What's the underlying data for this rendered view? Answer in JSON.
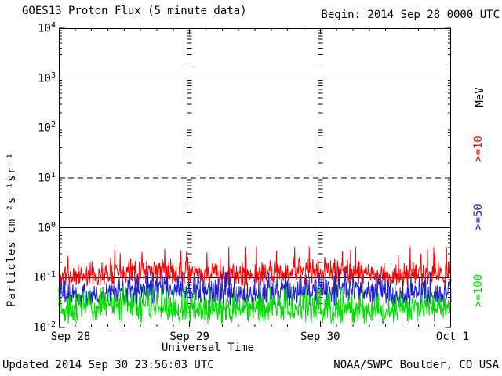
{
  "header": {
    "title": "GOES13 Proton Flux (5 minute data)",
    "begin_label": "Begin: 2014 Sep 28 0000 UTC"
  },
  "footer": {
    "updated": "Updated 2014 Sep 30 23:56:03 UTC",
    "source": "NOAA/SWPC Boulder, CO USA"
  },
  "chart_data": {
    "type": "line",
    "title": "GOES13 Proton Flux (5 minute data)",
    "xlabel": "Universal Time",
    "ylabel": "Particles cm⁻²s⁻¹sr⁻¹",
    "right_axis_unit": "MeV",
    "y_scale": "log10",
    "ylim_exponents": [
      -2,
      4
    ],
    "y_ticks": [
      {
        "base": "10",
        "exp": "4"
      },
      {
        "base": "10",
        "exp": "3"
      },
      {
        "base": "10",
        "exp": "2"
      },
      {
        "base": "10",
        "exp": "1"
      },
      {
        "base": "10",
        "exp": "0"
      },
      {
        "base": "10",
        "exp": "-1"
      },
      {
        "base": "10",
        "exp": "-2"
      }
    ],
    "solid_gridline_exponents": [
      3,
      2,
      0,
      -1
    ],
    "dashed_gridline_exponents": [
      1
    ],
    "x_ticks": [
      "Sep 28",
      "Sep 29",
      "Sep 30",
      "Oct 1"
    ],
    "x_range_days": 3,
    "x_minor_tick_hours": 3,
    "day_gridlines_at_days": [
      1,
      2
    ],
    "points_per_day": 288,
    "grid": "on",
    "series": [
      {
        "name": ">=10 MeV",
        "label": ">=10",
        "color": "#ff0000",
        "median": 0.12,
        "min": 0.07,
        "max": 0.42,
        "seed": 11
      },
      {
        "name": ">=50 MeV",
        "label": ">=50",
        "color": "#2222cc",
        "median": 0.05,
        "min": 0.027,
        "max": 0.13,
        "seed": 23
      },
      {
        "name": ">=100 MeV",
        "label": ">=100",
        "color": "#00dd00",
        "median": 0.024,
        "min": 0.012,
        "max": 0.065,
        "seed": 37
      }
    ],
    "notes": "Quiet-time background flux; all three channels flat/noisy for the full 3-day window, red ~1.2e-1, blue ~5e-2, green ~2.4e-2 particles cm-2 s-1 sr-1"
  }
}
